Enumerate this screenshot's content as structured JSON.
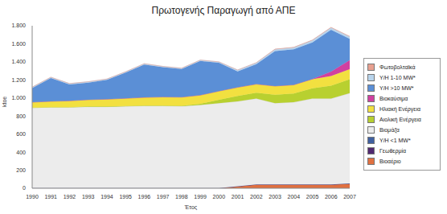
{
  "chart_data": {
    "type": "area",
    "title": "Πρωτογενής Παραγωγή από ΑΠΕ",
    "x_label": "Έτος",
    "y_label": "ktoe",
    "stacked": true,
    "grid": false,
    "legend": "right",
    "categories": [
      "1990",
      "1991",
      "1992",
      "1993",
      "1994",
      "1995",
      "1996",
      "1997",
      "1998",
      "1999",
      "2000",
      "2001",
      "2002",
      "2003",
      "2004",
      "2005",
      "2006",
      "2007"
    ],
    "ylim": [
      0,
      1800
    ],
    "yticks": [
      0,
      200,
      400,
      600,
      800,
      {
        "value": 1000,
        "label": "1.000"
      },
      {
        "value": 1200,
        "label": "1.200"
      },
      {
        "value": 1400,
        "label": "1.400"
      },
      {
        "value": 1600,
        "label": "1.600"
      },
      {
        "value": 1800,
        "label": "1.800"
      }
    ],
    "series": [
      {
        "name": "Φωτοβολταϊκά",
        "color": "#e8a090",
        "values": [
          0,
          0,
          0,
          0,
          0,
          0,
          0,
          0,
          0,
          0,
          0,
          0,
          1,
          1,
          1,
          1,
          2,
          2
        ]
      },
      {
        "name": "Υ/Η 1-10 MW*",
        "color": "#b8d4ec",
        "values": [
          10,
          10,
          10,
          10,
          10,
          10,
          10,
          10,
          10,
          10,
          10,
          15,
          15,
          20,
          20,
          25,
          25,
          25
        ]
      },
      {
        "name": "Υ/Η >10 MW*",
        "color": "#5b8fd6",
        "values": [
          157,
          257,
          182,
          189,
          214,
          284,
          364,
          329,
          311,
          379,
          314,
          177,
          222,
          388,
          395,
          405,
          463,
          237
        ]
      },
      {
        "name": "Βιοκαύσιμα",
        "color": "#d040a0",
        "values": [
          0,
          0,
          0,
          0,
          0,
          0,
          0,
          0,
          0,
          0,
          0,
          0,
          0,
          0,
          0,
          3,
          50,
          100
        ]
      },
      {
        "name": "Ηλιακή Ενέργεια",
        "color": "#f2e040",
        "values": [
          60,
          65,
          70,
          75,
          80,
          85,
          90,
          95,
          95,
          95,
          95,
          95,
          95,
          95,
          95,
          100,
          105,
          110
        ]
      },
      {
        "name": "Αιολική Ενέργεια",
        "color": "#b8d030",
        "values": [
          0,
          0,
          0,
          3,
          3,
          3,
          3,
          3,
          6,
          13,
          38,
          60,
          65,
          94,
          97,
          114,
          144,
          155
        ]
      },
      {
        "name": "Βιομάζα",
        "color": "#ececec",
        "values": [
          890,
          895,
          895,
          900,
          900,
          905,
          910,
          910,
          905,
          920,
          940,
          940,
          950,
          900,
          910,
          950,
          950,
          1000
        ]
      },
      {
        "name": "Υ/Η <1 MW*",
        "color": "#4060a0",
        "values": [
          1,
          1,
          1,
          1,
          1,
          1,
          1,
          1,
          1,
          1,
          1,
          1,
          1,
          1,
          1,
          1,
          1,
          1
        ]
      },
      {
        "name": "Γεωθερμία",
        "color": "#502870",
        "values": [
          2,
          2,
          2,
          2,
          2,
          2,
          2,
          2,
          2,
          2,
          2,
          2,
          2,
          2,
          2,
          2,
          2,
          2
        ]
      },
      {
        "name": "Βιοαέριο",
        "color": "#e07040",
        "values": [
          0,
          0,
          0,
          0,
          0,
          0,
          0,
          0,
          0,
          0,
          0,
          20,
          40,
          40,
          40,
          40,
          40,
          50
        ]
      }
    ]
  }
}
